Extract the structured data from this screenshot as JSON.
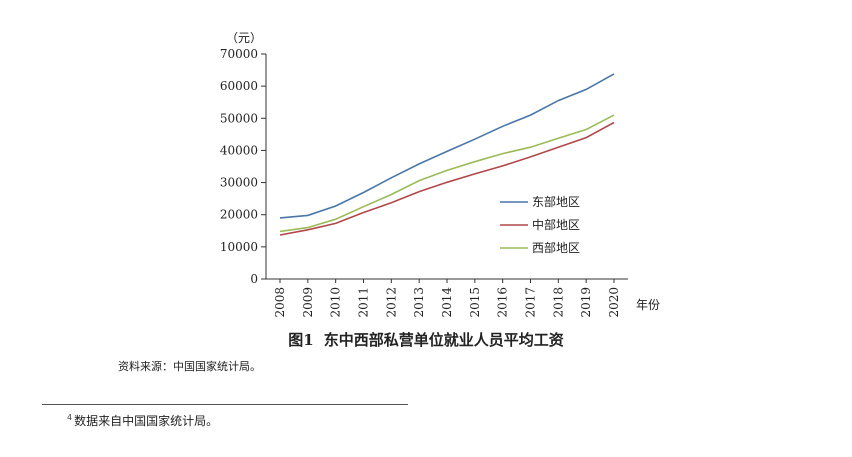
{
  "chart_data": {
    "type": "line",
    "unit_label": "（元）",
    "xlabel": "年份",
    "ylabel": "",
    "ylim": [
      0,
      70000
    ],
    "yticks": [
      0,
      10000,
      20000,
      30000,
      40000,
      50000,
      60000,
      70000
    ],
    "x": [
      "2008",
      "2009",
      "2010",
      "2011",
      "2012",
      "2013",
      "2014",
      "2015",
      "2016",
      "2017",
      "2018",
      "2019",
      "2020"
    ],
    "series": [
      {
        "name": "东部地区",
        "color": "#4a76a8",
        "values": [
          19000,
          19800,
          22700,
          26900,
          31500,
          35800,
          39700,
          43500,
          47500,
          51000,
          55500,
          59000,
          63800
        ]
      },
      {
        "name": "中部地区",
        "color": "#b0484a",
        "values": [
          13700,
          15300,
          17300,
          20700,
          23700,
          27200,
          30100,
          32700,
          35200,
          38000,
          41000,
          44000,
          48700
        ]
      },
      {
        "name": "西部地区",
        "color": "#9bbb59",
        "values": [
          14800,
          16000,
          18600,
          22500,
          26300,
          30600,
          33800,
          36500,
          39000,
          41000,
          43800,
          46500,
          51000
        ]
      }
    ],
    "grid": false,
    "legend_position": "right"
  },
  "caption": {
    "figure_number": "图1",
    "title": "东中西部私营单位就业人员平均工资"
  },
  "source_note": "资料来源：中国国家统计局。",
  "footnote": {
    "marker": "4",
    "text": "数据来自中国国家统计局。"
  }
}
